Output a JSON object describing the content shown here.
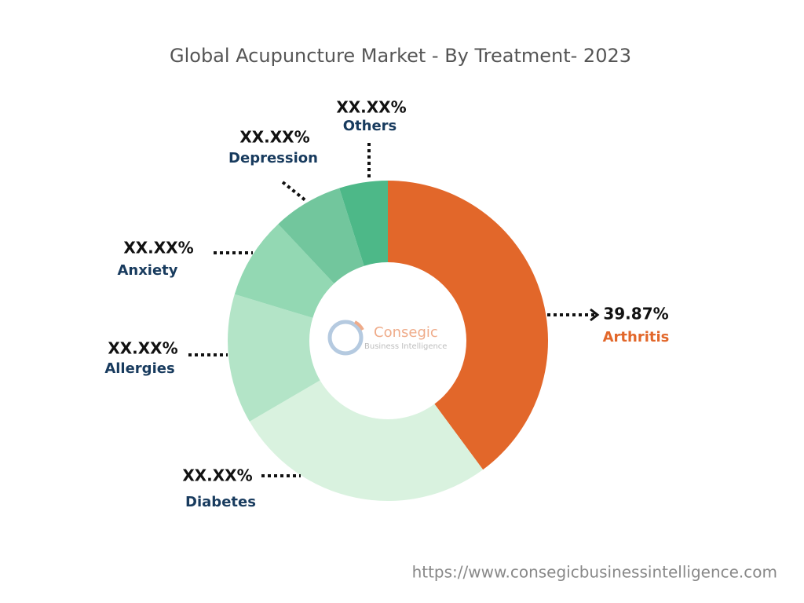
{
  "chart_data": {
    "type": "donut",
    "title": "Global Acupuncture Market - By Treatment- 2023",
    "categories": [
      "Arthritis",
      "Diabetes",
      "Allergies",
      "Anxiety",
      "Depression",
      "Others"
    ],
    "values": [
      39.87,
      26.7,
      13.1,
      8.3,
      7.1,
      4.9
    ],
    "value_labels": [
      "39.87%",
      "XX.XX%",
      "XX.XX%",
      "XX.XX%",
      "XX.XX%",
      "XX.XX%"
    ],
    "colors": [
      "#e2672a",
      "#d9f2df",
      "#b3e4c7",
      "#93d8b3",
      "#72c69d",
      "#4db888"
    ]
  },
  "watermark": {
    "name": "Consegic",
    "subtitle": "Business Intelligence"
  },
  "footer": "https://www.consegicbusinessintelligence.com"
}
